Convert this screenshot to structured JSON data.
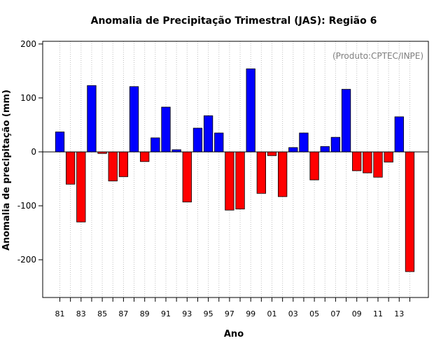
{
  "chart_data": {
    "type": "bar",
    "title": "Anomalia de Precipitação Trimestral (JAS): Região 6",
    "xlabel": "Ano",
    "ylabel": "Anomalia de precipitação (mm)",
    "annotation": "(Produto:CPTEC/INPE)",
    "ylim": [
      -270,
      205
    ],
    "yticks": [
      -200,
      -100,
      0,
      100,
      200
    ],
    "ytick_labels": [
      "-200",
      "-100",
      "0",
      "100",
      "200"
    ],
    "categories": [
      "81",
      "82",
      "83",
      "84",
      "85",
      "86",
      "87",
      "88",
      "89",
      "90",
      "91",
      "92",
      "93",
      "94",
      "95",
      "96",
      "97",
      "98",
      "99",
      "00",
      "01",
      "02",
      "03",
      "04",
      "05",
      "06",
      "07",
      "08",
      "09",
      "10",
      "11",
      "12",
      "13",
      "14"
    ],
    "xtick_labels": [
      "81",
      "83",
      "85",
      "87",
      "89",
      "91",
      "93",
      "95",
      "97",
      "99",
      "01",
      "03",
      "05",
      "07",
      "09",
      "11",
      "13"
    ],
    "values": [
      37,
      -60,
      -130,
      123,
      -3,
      -54,
      -46,
      121,
      -18,
      26,
      83,
      4,
      -93,
      44,
      67,
      35,
      -108,
      -106,
      154,
      -77,
      -7,
      -83,
      8,
      35,
      -52,
      10,
      27,
      116,
      -35,
      -39,
      -47,
      -19,
      65,
      -222
    ],
    "colors": {
      "positive": "#0000ff",
      "negative": "#ff0000",
      "grid": "#bebebe",
      "annotation": "#7f7f7f"
    }
  }
}
